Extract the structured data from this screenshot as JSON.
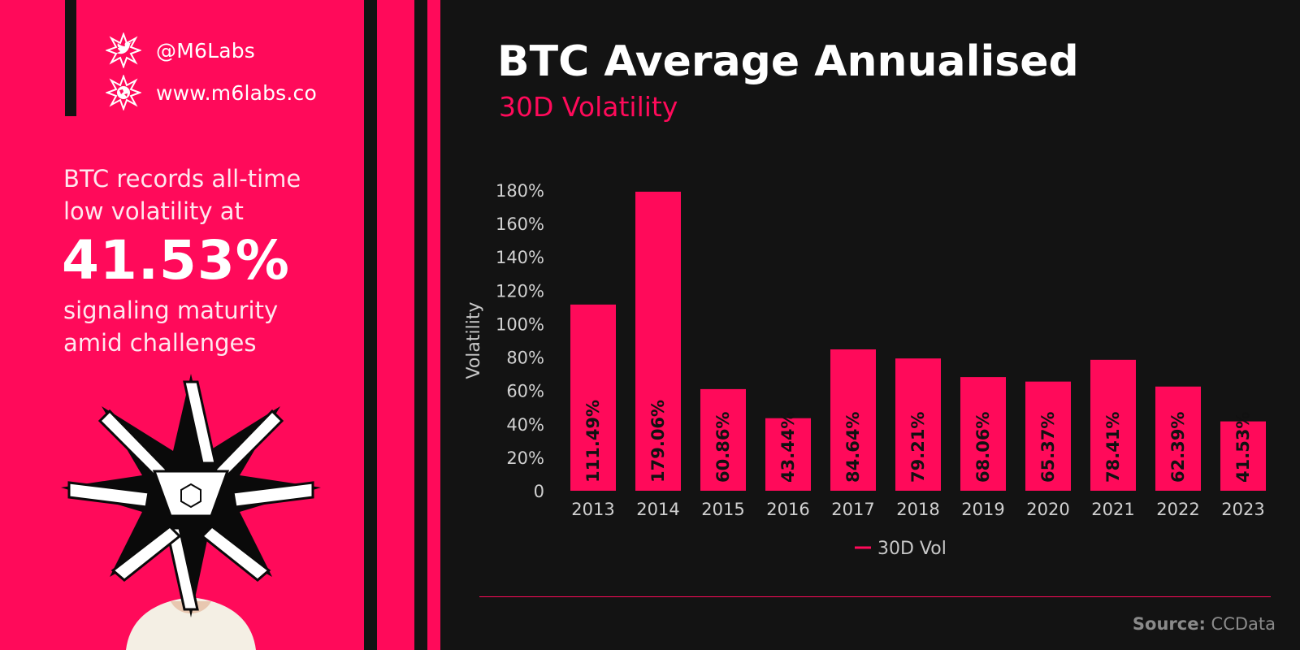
{
  "brand": {
    "twitter_handle": "@M6Labs",
    "website": "www.m6labs.co"
  },
  "headline": {
    "line1": "BTC records all-time",
    "line2": "low volatility at",
    "stat": "41.53%",
    "line3": "signaling maturity",
    "line4": "amid challenges"
  },
  "source": {
    "label": "Source:",
    "value": "CCData"
  },
  "colors": {
    "accent": "#ff0a5a",
    "background": "#131313",
    "text": "#ffffff"
  },
  "chart_data": {
    "type": "bar",
    "title": "BTC Average Annualised",
    "subtitle": "30D Volatility",
    "ylabel": "Volatility",
    "xlabel": "",
    "categories": [
      "2013",
      "2014",
      "2015",
      "2016",
      "2017",
      "2018",
      "2019",
      "2020",
      "2021",
      "2022",
      "2023"
    ],
    "series": [
      {
        "name": "30D Vol",
        "values": [
          111.49,
          179.06,
          60.86,
          43.44,
          84.64,
          79.21,
          68.06,
          65.37,
          78.41,
          62.39,
          41.53
        ],
        "labels": [
          "111.49%",
          "179.06%",
          "60.86%",
          "43.44%",
          "84.64%",
          "79.21%",
          "68.06%",
          "65.37%",
          "78.41%",
          "62.39%",
          "41.53%"
        ]
      }
    ],
    "ylim": [
      0,
      180
    ],
    "yticks": [
      0,
      20,
      40,
      60,
      80,
      100,
      120,
      140,
      160,
      180
    ],
    "ytick_labels": [
      "0",
      "20%",
      "40%",
      "60%",
      "80%",
      "100%",
      "120%",
      "140%",
      "160%",
      "180%"
    ],
    "grid": false,
    "legend": "bottom-center"
  }
}
